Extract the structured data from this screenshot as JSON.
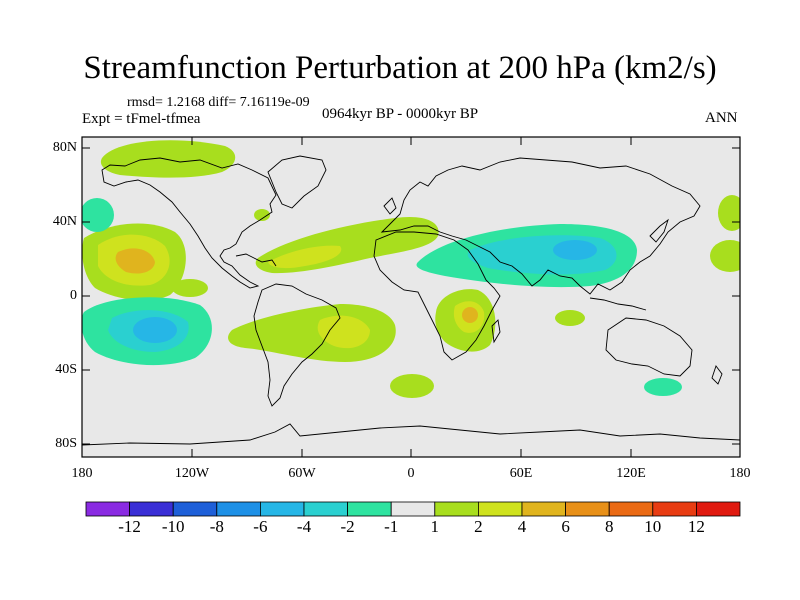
{
  "title": "Streamfunction Perturbation at 200 hPa (km2/s)",
  "stats_line": "rmsd= 1.2168 diff= 7.16119e-09",
  "experiment_label": "Expt = tFmel-tfmea",
  "period_label": "0964kyr BP - 0000kyr BP",
  "season_label": "ANN",
  "lat_labels": [
    "80N",
    "40N",
    "0",
    "40S",
    "80S"
  ],
  "lon_labels": [
    "180",
    "120W",
    "60W",
    "0",
    "60E",
    "120E",
    "180"
  ],
  "colorbar": {
    "labels": [
      "-12",
      "-10",
      "-8",
      "-6",
      "-4",
      "-2",
      "-1",
      "1",
      "2",
      "4",
      "6",
      "8",
      "10",
      "12"
    ],
    "colors": [
      "#8a2be2",
      "#3a2fd6",
      "#1e5fd8",
      "#1e90e6",
      "#26b6e6",
      "#2ad0d0",
      "#2ee3a0",
      "#e8e8e8",
      "#a8de1e",
      "#cfe21e",
      "#e0b41e",
      "#e89018",
      "#ea6a14",
      "#e83c12",
      "#e01a10"
    ]
  },
  "colors": {
    "background": "#e8e8e8",
    "coast": "#000000"
  }
}
